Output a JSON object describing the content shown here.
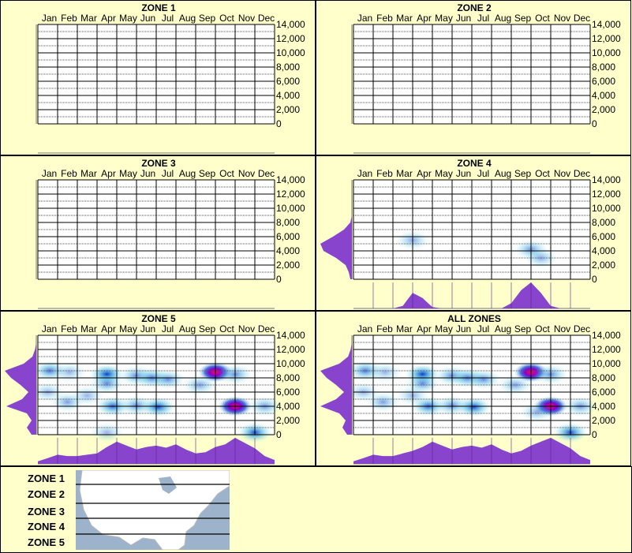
{
  "months": [
    "Jan",
    "Feb",
    "Mar",
    "Apr",
    "May",
    "Jun",
    "Jul",
    "Aug",
    "Sep",
    "Oct",
    "Nov",
    "Dec"
  ],
  "y_ticks": [
    "14,000",
    "12,000",
    "10,000",
    "8,000",
    "6,000",
    "4,000",
    "2,000",
    "0"
  ],
  "colors": {
    "background": "#FFFFCC",
    "profile": "#8844CC",
    "heat_low": "#B0F0F0",
    "heat_mid": "#0033CC",
    "heat_high": "#FF0066"
  },
  "legend": {
    "zones": [
      "ZONE 1",
      "ZONE 2",
      "ZONE 3",
      "ZONE 4",
      "ZONE 5"
    ]
  },
  "chart_data": [
    {
      "type": "heatmap",
      "title": "ZONE 1",
      "ylim": [
        0,
        14000
      ],
      "hotspots": [],
      "month_profile": [],
      "elev_profile": []
    },
    {
      "type": "heatmap",
      "title": "ZONE 2",
      "ylim": [
        0,
        14000
      ],
      "hotspots": [],
      "month_profile": [],
      "elev_profile": []
    },
    {
      "type": "heatmap",
      "title": "ZONE 3",
      "ylim": [
        0,
        14000
      ],
      "hotspots": [],
      "month_profile": [],
      "elev_profile": []
    },
    {
      "type": "heatmap",
      "title": "ZONE 4",
      "ylim": [
        0,
        14000
      ],
      "hotspots": [
        [
          3,
          5500,
          0.35
        ],
        [
          9,
          4200,
          0.45
        ],
        [
          9.5,
          3000,
          0.35
        ]
      ],
      "month_profile": [
        0,
        0,
        0,
        0,
        0,
        0.1,
        0.6,
        0.4,
        0.05,
        0,
        0,
        0,
        0,
        0,
        0,
        0,
        0.2,
        0.7,
        1,
        0.6,
        0.1,
        0,
        0,
        0,
        0
      ],
      "elev_profile": [
        0.05,
        0.1,
        0.2,
        0.5,
        0.9,
        1,
        0.6,
        0.25,
        0.05,
        0,
        0,
        0,
        0,
        0,
        0
      ]
    },
    {
      "type": "heatmap",
      "title": "ZONE 5",
      "ylim": [
        0,
        14000
      ],
      "hotspots": [
        [
          0.6,
          9000,
          0.6
        ],
        [
          1.6,
          8800,
          0.3
        ],
        [
          3.5,
          8500,
          0.9
        ],
        [
          3.5,
          7200,
          0.5
        ],
        [
          5,
          8300,
          0.5
        ],
        [
          5.8,
          8000,
          0.6
        ],
        [
          6.6,
          7800,
          0.5
        ],
        [
          9,
          8800,
          1.0
        ],
        [
          8.2,
          7000,
          0.4
        ],
        [
          10,
          8500,
          0.5
        ],
        [
          3.8,
          4000,
          0.7
        ],
        [
          5,
          4100,
          0.5
        ],
        [
          6.1,
          3900,
          0.8
        ],
        [
          10,
          4000,
          1.0
        ],
        [
          11.5,
          4000,
          0.45
        ],
        [
          11,
          300,
          0.8
        ],
        [
          1.5,
          4600,
          0.4
        ],
        [
          0.5,
          6000,
          0.3
        ],
        [
          2.5,
          5500,
          0.3
        ],
        [
          3.5,
          300,
          0.3
        ]
      ],
      "month_profile": [
        0.1,
        0.22,
        0.35,
        0.3,
        0.3,
        0.35,
        0.4,
        0.65,
        0.85,
        0.7,
        0.55,
        0.65,
        0.7,
        0.62,
        0.75,
        0.55,
        0.4,
        0.45,
        0.65,
        0.75,
        1,
        0.8,
        0.6,
        0.3,
        0.15
      ],
      "elev_profile": [
        0.15,
        0.3,
        0.15,
        0.3,
        0.95,
        0.45,
        0.25,
        0.5,
        0.8,
        1,
        0.4,
        0.12,
        0.04,
        0,
        0
      ]
    },
    {
      "type": "heatmap",
      "title": "ALL ZONES",
      "ylim": [
        0,
        14000
      ],
      "hotspots": [
        [
          0.6,
          9000,
          0.6
        ],
        [
          1.6,
          8800,
          0.3
        ],
        [
          3.5,
          8500,
          0.9
        ],
        [
          3.5,
          7200,
          0.5
        ],
        [
          5,
          8300,
          0.5
        ],
        [
          5.8,
          8000,
          0.6
        ],
        [
          6.6,
          7800,
          0.5
        ],
        [
          9,
          8800,
          1.0
        ],
        [
          8.2,
          7000,
          0.4
        ],
        [
          10,
          8500,
          0.5
        ],
        [
          3.8,
          4000,
          0.7
        ],
        [
          5,
          4100,
          0.5
        ],
        [
          6.1,
          3900,
          0.8
        ],
        [
          10,
          4000,
          1.0
        ],
        [
          11.5,
          4000,
          0.45
        ],
        [
          11,
          300,
          0.8
        ],
        [
          1.5,
          4600,
          0.4
        ],
        [
          3,
          5500,
          0.3
        ],
        [
          9.3,
          3200,
          0.35
        ],
        [
          0.5,
          6000,
          0.3
        ]
      ],
      "month_profile": [
        0.1,
        0.22,
        0.35,
        0.3,
        0.3,
        0.4,
        0.5,
        0.65,
        0.85,
        0.7,
        0.55,
        0.65,
        0.7,
        0.62,
        0.75,
        0.55,
        0.4,
        0.5,
        0.7,
        0.85,
        1,
        0.8,
        0.6,
        0.3,
        0.15
      ],
      "elev_profile": [
        0.15,
        0.3,
        0.2,
        0.4,
        1,
        0.5,
        0.25,
        0.5,
        0.8,
        1,
        0.4,
        0.12,
        0.04,
        0,
        0
      ]
    }
  ]
}
